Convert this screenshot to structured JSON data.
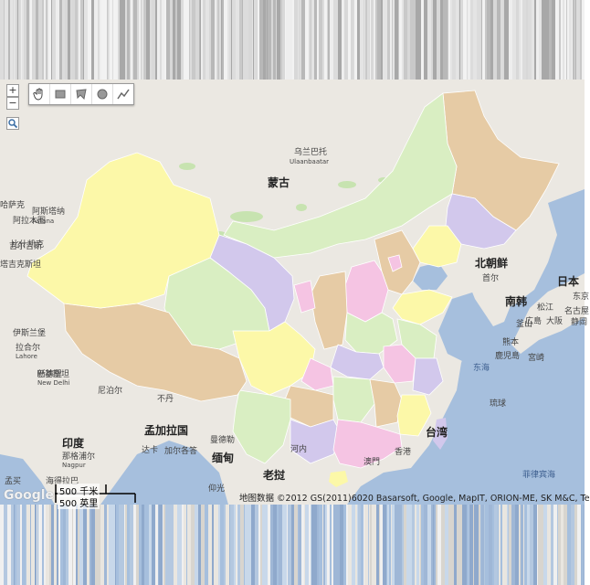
{
  "map": {
    "countries": {
      "mongolia": "蒙古",
      "north_korea": "北朝鲜",
      "south_korea": "南韩",
      "japan": "日本",
      "india": "印度",
      "bangladesh": "孟加拉国",
      "myanmar": "缅甸",
      "laos": "老挝",
      "bhutan": "不丹",
      "nepal": "尼泊尔",
      "kazakhstan": "哈萨克",
      "kyrgyzstan": "吉尔吉斯",
      "tajikistan": "塔吉克斯坦",
      "pakistan": "巴基斯坦",
      "taiwan": "台湾"
    },
    "cities": {
      "ulaanbaatar": "乌兰巴托",
      "ulaanbaatar_en": "Ulaanbaatar",
      "astana": "阿斯塔纳",
      "astana_en": "Astana",
      "seoul": "首尔",
      "busan": "釜山",
      "osaka": "大阪",
      "tokyo": "东京",
      "kagoshima": "鹿児島",
      "miyazaki": "宮崎",
      "kumamoto": "熊本",
      "matsue": "松江",
      "hiroshima": "広島",
      "nagoya": "名古屋",
      "shizuoka": "静岡",
      "delhi": "新德里",
      "new_delhi": "New Delhi",
      "lahore": "拉合尔",
      "lahore_en": "Lahore",
      "nagpur": "那格浦尔",
      "nagpur_en": "Nagpur",
      "kolkata": "加尔各答",
      "dhaka": "达卡",
      "mandalay": "曼德勒",
      "yangon": "仰光",
      "hanoi": "河内",
      "hong_kong": "香港",
      "macau": "澳門",
      "mumbai": "孟买",
      "hyderabad": "海得拉巴",
      "almaty": "阿拉木图",
      "bishkek": "比什凯克",
      "islamabad": "伊斯兰堡"
    },
    "seas": {
      "east_sea": "东海",
      "philippine_sea": "菲律宾海"
    },
    "islands": {
      "ryukyu": "琉球"
    }
  },
  "controls": {
    "zoom_in": "+",
    "zoom_out": "−",
    "tools": [
      "hand-icon",
      "rectangle-icon",
      "polygon-icon",
      "circle-icon",
      "polyline-icon"
    ]
  },
  "scale": {
    "metric": "500 千米",
    "imperial": "500 英里"
  },
  "attribution": "地图数据 ©2012 GS(2011)6020 Basarsoft, Google, MapIT, ORION-ME, SK M&C, Te",
  "logo": "Google",
  "colors": {
    "water": "#a6bfdd",
    "land": "#ebe8e2",
    "yellow": "#fcf8a8",
    "tan": "#e6cba5",
    "green": "#d9eec2",
    "purple": "#d2c8ec",
    "pink": "#f5c4e3",
    "park": "#c7e3b0"
  }
}
